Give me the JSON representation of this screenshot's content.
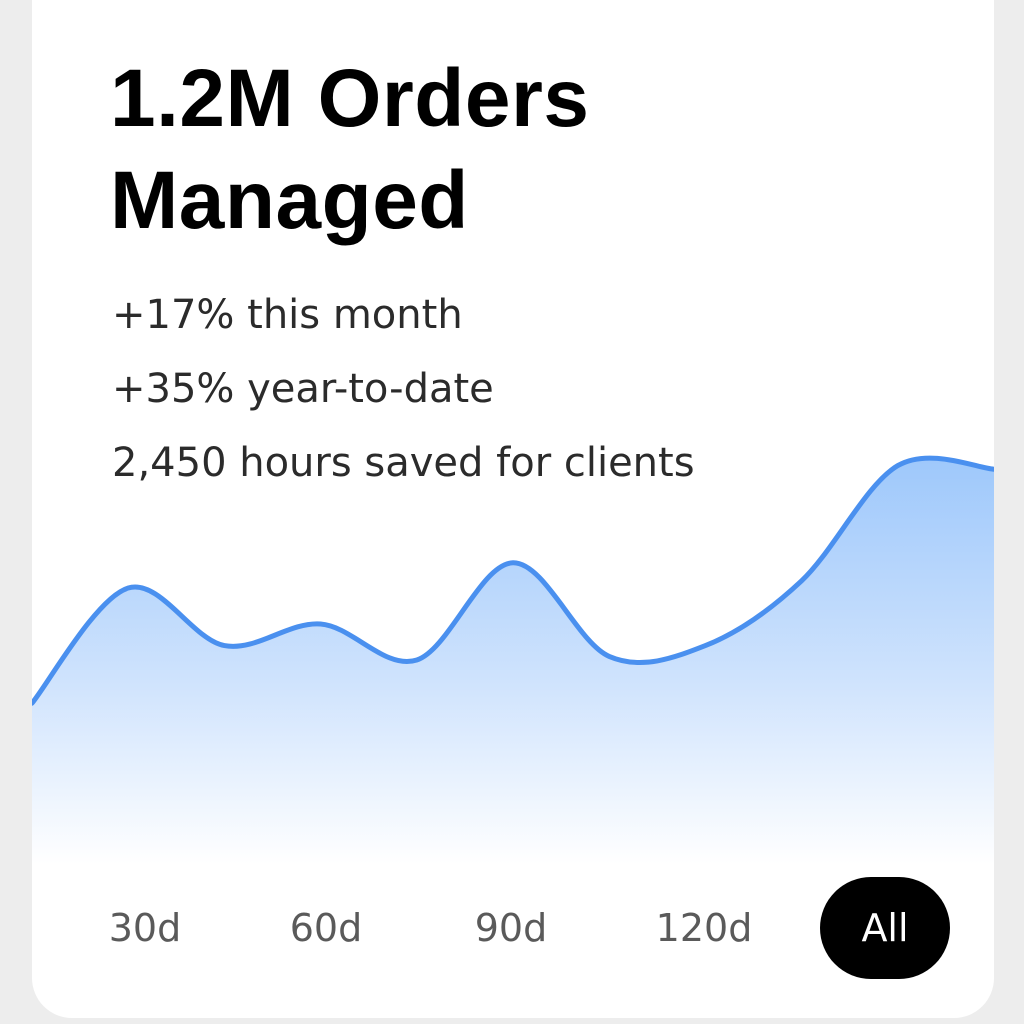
{
  "headline": {
    "line1": "1.2M Orders",
    "line2": "Managed"
  },
  "stats": [
    "+17% this month",
    "+35% year-to-date",
    "2,450 hours saved for clients"
  ],
  "chart_data": {
    "type": "area",
    "series": [
      {
        "values": [
          0.28,
          0.6,
          0.44,
          0.5,
          0.4,
          0.67,
          0.41,
          0.44,
          0.62,
          0.94,
          0.93
        ]
      }
    ],
    "ylim": [
      0,
      1
    ],
    "grid": false,
    "axes_visible": false,
    "line_color": "#4a90ef",
    "fill_top_color": "#9ec8fb",
    "fill_bottom_color": "#ffffff"
  },
  "ranges": {
    "options": [
      "30d",
      "60d",
      "90d",
      "120d",
      "All"
    ],
    "selected": "All"
  }
}
